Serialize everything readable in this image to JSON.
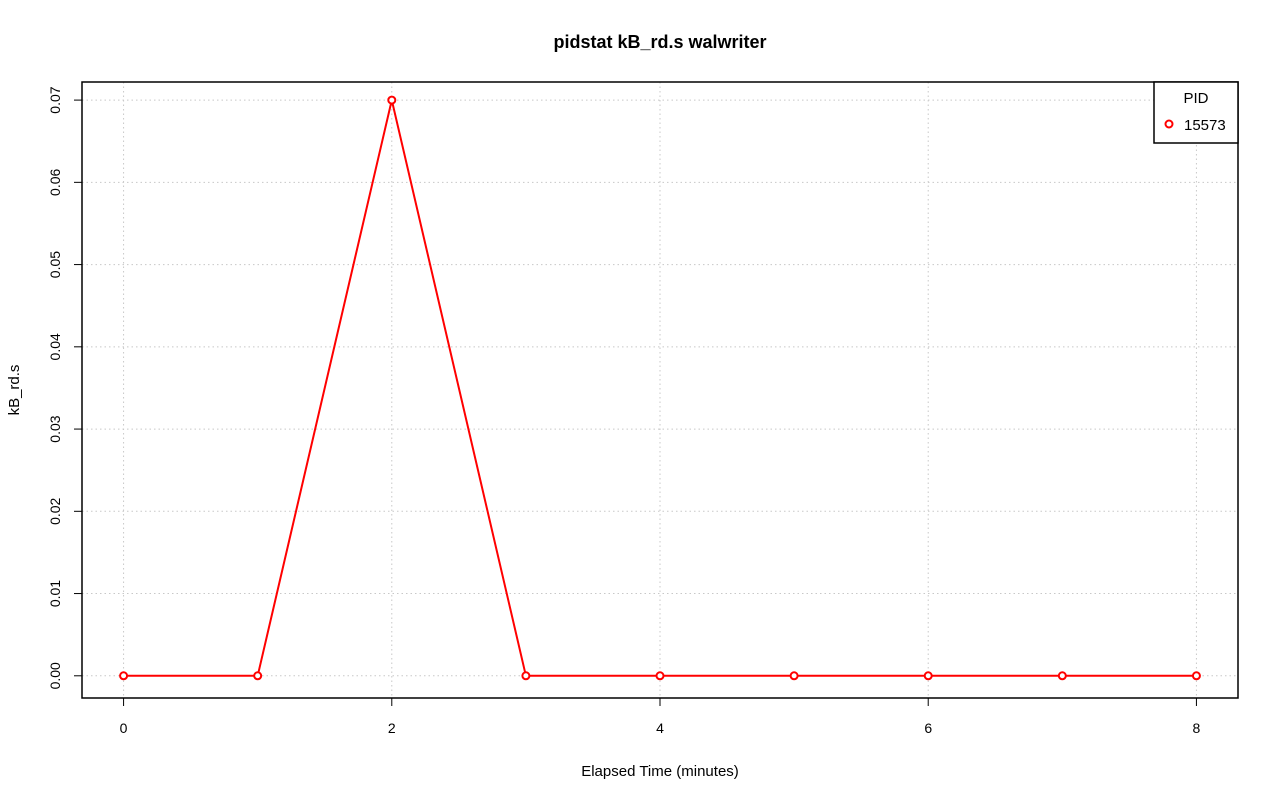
{
  "chart_data": {
    "type": "line",
    "title": "pidstat kB_rd.s walwriter",
    "xlabel": "Elapsed Time (minutes)",
    "ylabel": "kB_rd.s",
    "xlim": [
      -0.31,
      8.31
    ],
    "ylim": [
      -0.0027,
      0.0722
    ],
    "x_ticks": [
      "0",
      "2",
      "4",
      "6",
      "8"
    ],
    "y_ticks": [
      "0.00",
      "0.01",
      "0.02",
      "0.03",
      "0.04",
      "0.05",
      "0.06",
      "0.07"
    ],
    "grid": true,
    "legend": {
      "title": "PID",
      "placement": "top-right"
    },
    "series": [
      {
        "name": "15573",
        "color": "#ff0000",
        "marker": "open-circle",
        "x": [
          0,
          1,
          2,
          3,
          4,
          5,
          6,
          7,
          8
        ],
        "y": [
          0,
          0,
          0.07,
          0,
          0,
          0,
          0,
          0,
          0
        ]
      }
    ]
  }
}
